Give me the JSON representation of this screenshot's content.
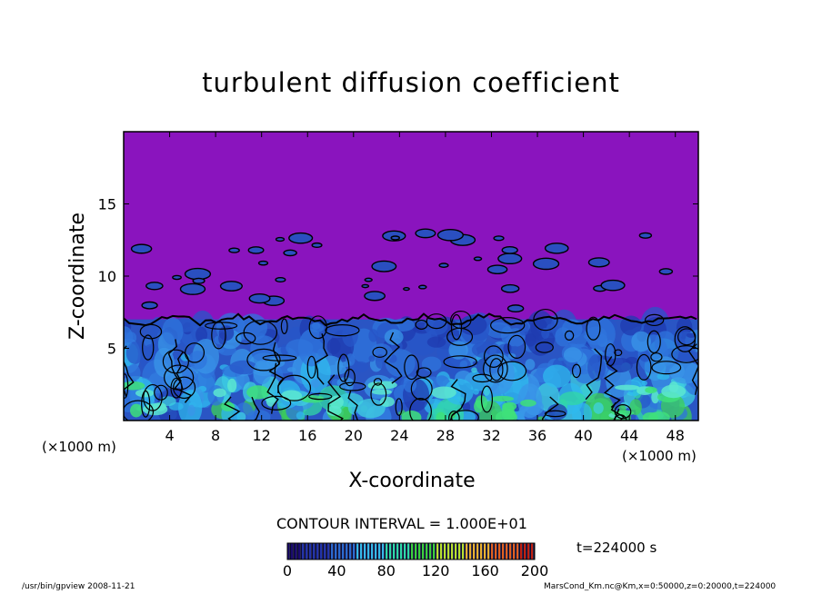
{
  "chart_data": {
    "type": "heatmap",
    "title": "turbulent diffusion coefficient",
    "xlabel": "X-coordinate",
    "ylabel": "Z-coordinate",
    "x_unit_label": "(×1000 m)",
    "z_unit_label": "(×1000 m)",
    "xlim": [
      0,
      50
    ],
    "ylim": [
      0,
      20
    ],
    "x_ticks": [
      "4",
      "8",
      "12",
      "16",
      "20",
      "24",
      "28",
      "32",
      "36",
      "40",
      "44",
      "48"
    ],
    "x_tick_values": [
      4,
      8,
      12,
      16,
      20,
      24,
      28,
      32,
      36,
      40,
      44,
      48
    ],
    "y_ticks": [
      "5",
      "10",
      "15"
    ],
    "y_tick_values": [
      5,
      10,
      15
    ],
    "mixed_layer_top": 7,
    "contour_interval": "CONTOUR INTERVAL = 1.000E+01",
    "colorbar": {
      "ticks": [
        "0",
        "40",
        "80",
        "120",
        "160",
        "200"
      ],
      "tick_values": [
        0,
        40,
        80,
        120,
        160,
        200
      ],
      "range": [
        0,
        200
      ],
      "colors": [
        "#1a0a6e",
        "#2233aa",
        "#2a6ad0",
        "#36b8e8",
        "#2ed8a8",
        "#3ccf3c",
        "#b8e030",
        "#e8b030",
        "#e06020",
        "#c02010"
      ]
    },
    "background_color": "#8a14be",
    "time_label": "t=224000 s"
  },
  "footer": {
    "left": "/usr/bin/gpview   2008-11-21",
    "right": "MarsCond_Km.nc@Km,x=0:50000,z=0:20000,t=224000"
  }
}
